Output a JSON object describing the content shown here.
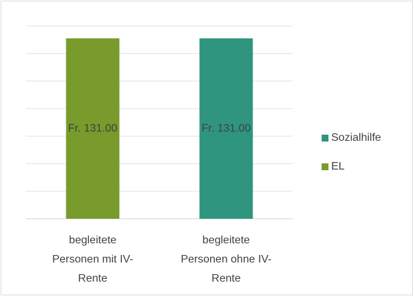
{
  "chart_data": {
    "type": "bar",
    "stacked": true,
    "categories": [
      "begleitete Personen mit IV-Rente",
      "begleitete Personen ohne IV-Rente"
    ],
    "series": [
      {
        "name": "EL",
        "color": "#789b2c",
        "values": [
          131,
          null
        ],
        "value_labels": [
          "Fr. 131.00",
          null
        ]
      },
      {
        "name": "Sozialhilfe",
        "color": "#2f957f",
        "values": [
          null,
          131
        ],
        "value_labels": [
          null,
          "Fr. 131.00"
        ]
      }
    ],
    "ylim": [
      0,
      140
    ],
    "yticks": [
      0,
      20,
      40,
      60,
      80,
      100,
      120,
      140
    ],
    "grid": true,
    "legend": "right"
  }
}
